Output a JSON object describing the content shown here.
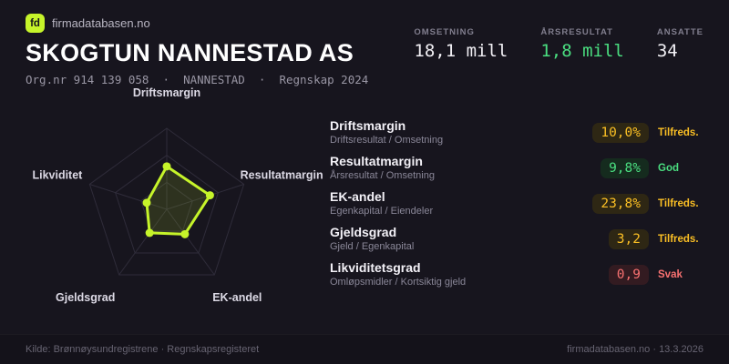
{
  "brand": {
    "logo_text": "fd",
    "site": "firmadatabasen.no"
  },
  "header": {
    "title": "SKOGTUN NANNESTAD AS",
    "subtitle": "Org.nr 914 139 058  ·  NANNESTAD  ·  Regnskap 2024",
    "stats": [
      {
        "label": "OMSETNING",
        "value": "18,1 mill",
        "color": "#f2f0f5"
      },
      {
        "label": "ÅRSRESULTAT",
        "value": "1,8 mill",
        "color": "#4ade80"
      },
      {
        "label": "ANSATTE",
        "value": "34",
        "color": "#f2f0f5"
      }
    ]
  },
  "chart_data": {
    "type": "radar",
    "axes": [
      "Driftsmargin",
      "Resultatmargin",
      "EK-andel",
      "Gjeldsgrad",
      "Likviditet"
    ],
    "values_normalized": [
      0.53,
      0.56,
      0.38,
      0.36,
      0.26
    ],
    "axis_display_values": [
      "10,0%",
      "9,8%",
      "23,8%",
      "3,2",
      "0,9"
    ],
    "range": [
      0,
      1
    ],
    "rings": 3,
    "grid_color": "#2f2c3a",
    "stroke_color": "#c6f42a",
    "fill_color": "rgba(198,244,42,0.13)"
  },
  "metrics": [
    {
      "name": "Driftsmargin",
      "formula": "Driftsresultat / Omsetning",
      "value": "10,0%",
      "status": "Tilfreds.",
      "tone": "amber"
    },
    {
      "name": "Resultatmargin",
      "formula": "Årsresultat / Omsetning",
      "value": "9,8%",
      "status": "God",
      "tone": "green"
    },
    {
      "name": "EK-andel",
      "formula": "Egenkapital / Eiendeler",
      "value": "23,8%",
      "status": "Tilfreds.",
      "tone": "amber"
    },
    {
      "name": "Gjeldsgrad",
      "formula": "Gjeld / Egenkapital",
      "value": "3,2",
      "status": "Tilfreds.",
      "tone": "amber"
    },
    {
      "name": "Likviditetsgrad",
      "formula": "Omløpsmidler / Kortsiktig gjeld",
      "value": "0,9",
      "status": "Svak",
      "tone": "red"
    }
  ],
  "footer": {
    "source": "Kilde: Brønnøysundregistrene · Regnskapsregisteret",
    "site_date": "firmadatabasen.no · 13.3.2026"
  },
  "colors": {
    "background": "#17151e",
    "accent": "#c6f42a",
    "green": "#4ade80",
    "amber": "#fbbf24",
    "red": "#f87171"
  }
}
